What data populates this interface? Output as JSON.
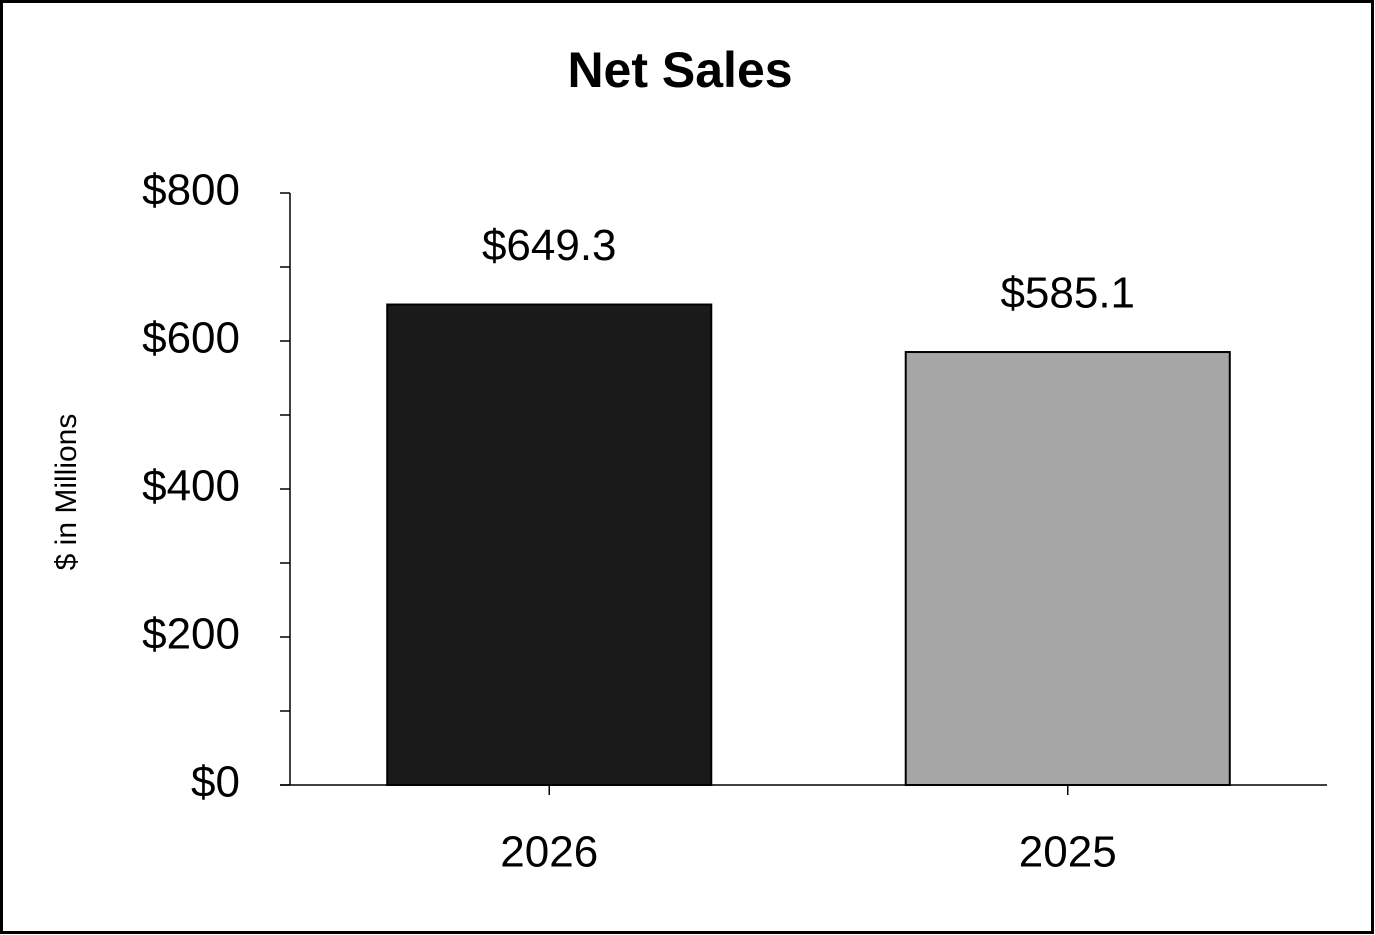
{
  "chart_data": {
    "type": "bar",
    "title": "Net Sales",
    "y_label": "$ in Millions",
    "categories": [
      "2026",
      "2025"
    ],
    "values": [
      649.3,
      585.1
    ],
    "value_labels": [
      "$649.3",
      "$585.1"
    ],
    "colors": [
      "#1a1a1a",
      "#a6a6a6"
    ],
    "ylim": [
      0,
      800
    ],
    "yticks": [
      {
        "value": 0,
        "label": "$0"
      },
      {
        "value": 200,
        "label": "$200"
      },
      {
        "value": 400,
        "label": "$400"
      },
      {
        "value": 600,
        "label": "$600"
      },
      {
        "value": 800,
        "label": "$800"
      }
    ],
    "yminorticks": [
      100,
      300,
      500,
      700
    ],
    "grid": false
  }
}
